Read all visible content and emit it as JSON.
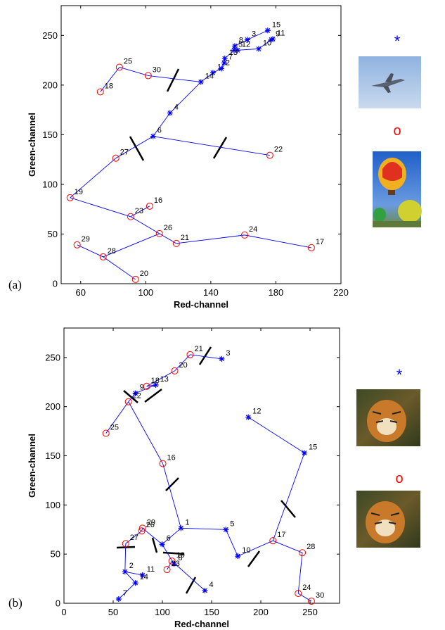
{
  "chart_data": [
    {
      "type": "scatter",
      "panel_label": "(a)",
      "xlabel": "Red-channel",
      "ylabel": "Green-channel",
      "xlim": [
        48,
        220
      ],
      "ylim": [
        0,
        280
      ],
      "xticks": [
        60,
        100,
        140,
        180,
        220
      ],
      "yticks": [
        0,
        50,
        100,
        150,
        200,
        250
      ],
      "series": [
        {
          "name": "*",
          "color": "#0000ff",
          "marker": "star",
          "labels": [
            "1",
            "2",
            "3",
            "4",
            "5",
            "6",
            "7",
            "8",
            "9",
            "10",
            "11",
            "12",
            "13",
            "14",
            "15"
          ],
          "x": [
            141.3,
            146.5,
            162.5,
            114.9,
            154.3,
            104.5,
            148.2,
            154.7,
            177.2,
            169.4,
            178.1,
            156.4,
            148.6,
            133.9,
            175
          ],
          "y": [
            212.4,
            216.6,
            245.7,
            171.9,
            235.1,
            148.4,
            222.3,
            239.3,
            245.7,
            236.5,
            246.4,
            235.1,
            226.8,
            203.1,
            255
          ]
        },
        {
          "name": "o",
          "color": "#ff0000",
          "marker": "circle",
          "labels": [
            "16",
            "17",
            "18",
            "19",
            "20",
            "21",
            "22",
            "23",
            "24",
            "25",
            "26",
            "27",
            "28",
            "29",
            "30"
          ],
          "x": [
            102.4,
            201.8,
            72.1,
            53.5,
            93.7,
            118.8,
            176.3,
            90.7,
            160.8,
            83.8,
            108.4,
            81.6,
            73.8,
            57.8,
            101.5
          ],
          "y": [
            78.1,
            36.2,
            193.2,
            86.6,
            4.3,
            40.5,
            129.3,
            67.5,
            49,
            218,
            50.4,
            126.4,
            27,
            39.1,
            209.5
          ]
        }
      ],
      "edges": [
        [
          "18",
          "25"
        ],
        [
          "25",
          "30"
        ],
        [
          "30",
          "14"
        ],
        [
          "14",
          "1"
        ],
        [
          "1",
          "2"
        ],
        [
          "2",
          "7"
        ],
        [
          "7",
          "13"
        ],
        [
          "13",
          "5"
        ],
        [
          "5",
          "8"
        ],
        [
          "8",
          "3"
        ],
        [
          "3",
          "15"
        ],
        [
          "5",
          "12"
        ],
        [
          "12",
          "10"
        ],
        [
          "10",
          "9"
        ],
        [
          "9",
          "11"
        ],
        [
          "14",
          "4"
        ],
        [
          "4",
          "6"
        ],
        [
          "6",
          "22"
        ],
        [
          "6",
          "27"
        ],
        [
          "27",
          "19"
        ],
        [
          "19",
          "23"
        ],
        [
          "23",
          "16"
        ],
        [
          "23",
          "26"
        ],
        [
          "26",
          "21"
        ],
        [
          "21",
          "24"
        ],
        [
          "24",
          "17"
        ],
        [
          "26",
          "28"
        ],
        [
          "28",
          "29"
        ],
        [
          "28",
          "20"
        ]
      ]
    },
    {
      "type": "scatter",
      "panel_label": "(b)",
      "xlabel": "Red-channel",
      "ylabel": "Green-channel",
      "xlim": [
        0,
        280
      ],
      "ylim": [
        0,
        280
      ],
      "xticks": [
        0,
        50,
        100,
        150,
        200,
        250
      ],
      "yticks": [
        0,
        50,
        100,
        150,
        200,
        250
      ],
      "series": [
        {
          "name": "*",
          "color": "#0000ff",
          "marker": "star",
          "labels": [
            "1",
            "2",
            "3",
            "4",
            "5",
            "6",
            "7",
            "8",
            "9",
            "10",
            "11",
            "12",
            "13",
            "14",
            "15"
          ],
          "x": [
            118.9,
            62,
            160.3,
            143.2,
            164.5,
            99.7,
            55.6,
            111.8,
            72.6,
            176.6,
            79.8,
            187.3,
            93.3,
            72.6,
            244.3
          ],
          "y": [
            76.4,
            32.1,
            248.6,
            12.9,
            75,
            60,
            4.3,
            40,
            213.6,
            47.9,
            28.6,
            189.3,
            222.1,
            20.7,
            152.9
          ]
        },
        {
          "name": "o",
          "color": "#ff0000",
          "marker": "circle",
          "labels": [
            "16",
            "17",
            "18",
            "19",
            "20",
            "21",
            "22",
            "23",
            "24",
            "25",
            "26",
            "27",
            "28",
            "29",
            "30"
          ],
          "x": [
            100.4,
            212.3,
            84,
            109.7,
            112.5,
            128.2,
            65.5,
            104.7,
            238,
            42.7,
            79,
            62.7,
            242.2,
            79.8,
            251.4
          ],
          "y": [
            142.1,
            63.6,
            220.7,
            42.9,
            236.4,
            252.9,
            205,
            34.3,
            10,
            172.9,
            73.6,
            60.7,
            51.4,
            76.4,
            2.1
          ]
        }
      ],
      "edges": [
        [
          "3",
          "21"
        ],
        [
          "21",
          "20"
        ],
        [
          "20",
          "18"
        ],
        [
          "18",
          "13"
        ],
        [
          "13",
          "9"
        ],
        [
          "9",
          "22"
        ],
        [
          "22",
          "25"
        ],
        [
          "22",
          "16"
        ],
        [
          "16",
          "1"
        ],
        [
          "1",
          "5"
        ],
        [
          "5",
          "10"
        ],
        [
          "10",
          "17"
        ],
        [
          "17",
          "15"
        ],
        [
          "15",
          "12"
        ],
        [
          "17",
          "28"
        ],
        [
          "28",
          "24"
        ],
        [
          "24",
          "30"
        ],
        [
          "1",
          "6"
        ],
        [
          "6",
          "29"
        ],
        [
          "29",
          "26"
        ],
        [
          "26",
          "27"
        ],
        [
          "27",
          "2"
        ],
        [
          "2",
          "11"
        ],
        [
          "2",
          "14"
        ],
        [
          "14",
          "7"
        ],
        [
          "6",
          "8"
        ],
        [
          "8",
          "19"
        ],
        [
          "19",
          "23"
        ],
        [
          "19",
          "4"
        ]
      ]
    }
  ]
}
